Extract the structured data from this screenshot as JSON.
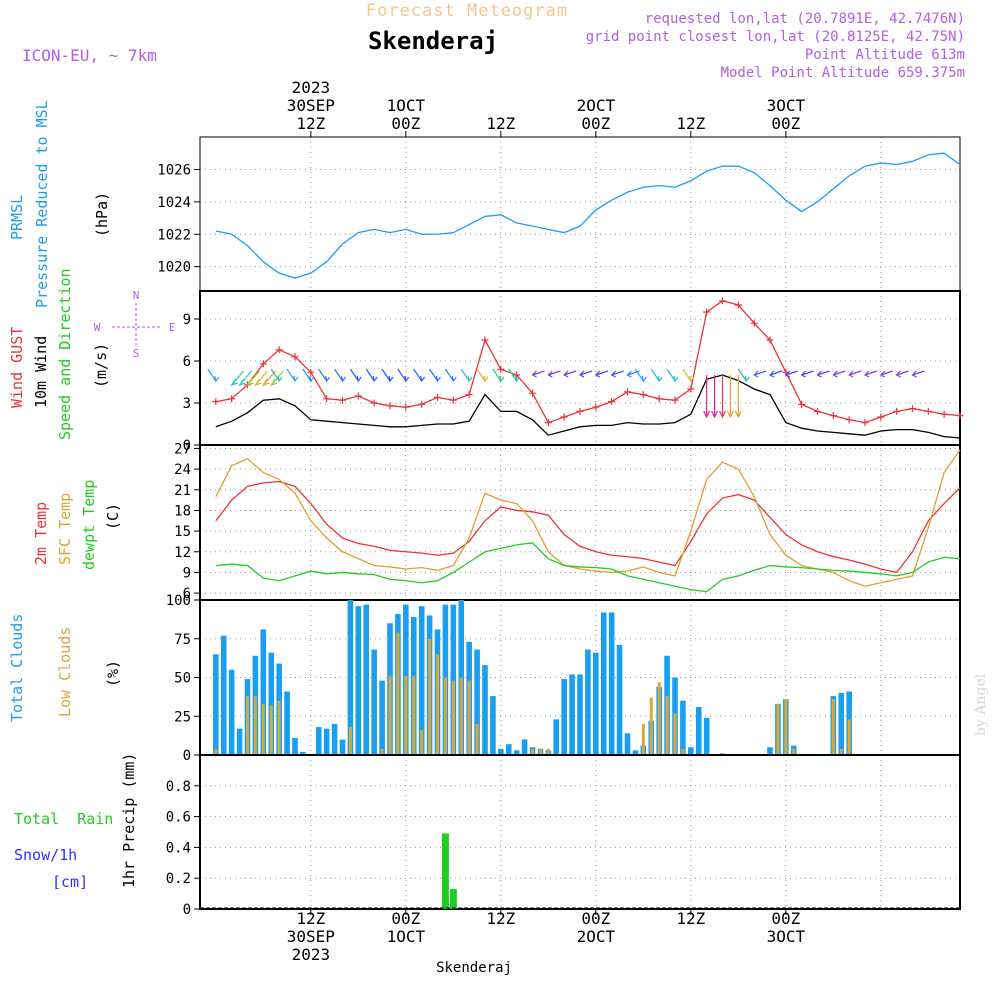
{
  "header": {
    "product": "Forecast Meteogram",
    "location": "Skenderaj",
    "model": "ICON-EU, ~ 7km",
    "requested": "requested lon,lat (20.7891E, 42.7476N)",
    "gridpoint": "grid point closest lon,lat (20.8125E, 42.75N)",
    "point_alt": "Point Altitude 613m",
    "model_alt": "Model Point Altitude 659.375m",
    "footer_location": "Skenderaj",
    "watermark": "by Angel"
  },
  "time_axis": {
    "top_labels": [
      {
        "h": 12,
        "lines": [
          "2023",
          "30SEP",
          "12Z"
        ]
      },
      {
        "h": 24,
        "lines": [
          "1OCT",
          "00Z"
        ]
      },
      {
        "h": 36,
        "lines": [
          "12Z"
        ]
      },
      {
        "h": 48,
        "lines": [
          "2OCT",
          "00Z"
        ]
      },
      {
        "h": 60,
        "lines": [
          "12Z"
        ]
      },
      {
        "h": 72,
        "lines": [
          "3OCT",
          "00Z"
        ]
      }
    ],
    "bottom_labels": [
      {
        "h": 12,
        "lines": [
          "12Z",
          "30SEP",
          "2023"
        ]
      },
      {
        "h": 24,
        "lines": [
          "00Z",
          "1OCT"
        ]
      },
      {
        "h": 36,
        "lines": [
          "12Z"
        ]
      },
      {
        "h": 48,
        "lines": [
          "00Z",
          "2OCT"
        ]
      },
      {
        "h": 60,
        "lines": [
          "12Z"
        ]
      },
      {
        "h": 72,
        "lines": [
          "00Z",
          "3OCT"
        ]
      }
    ]
  },
  "panel_labels": {
    "pressure": [
      "PRMSL",
      "Pressure Reduced to MSL"
    ],
    "pressure_unit": "(hPa)",
    "wind": [
      "Wind GUST",
      "10m Wind",
      "Speed and Direction"
    ],
    "wind_unit": "(m/s)",
    "compass": {
      "n": "N",
      "s": "S",
      "w": "W",
      "e": "E"
    },
    "temp": [
      "2m Temp",
      "SFC Temp",
      "dewpt Temp"
    ],
    "temp_unit": "(C)",
    "clouds": [
      "Total Clouds",
      "Low Clouds"
    ],
    "clouds_unit": "(%)",
    "precip": [
      "Total  Rain",
      "Snow/1h",
      "[cm]"
    ],
    "precip_unit": "1hr Precip (mm)"
  },
  "colors": {
    "pressure": "#1a9ff0",
    "gust": "#e8343c",
    "wind": "#000000",
    "temp2m": "#e8343c",
    "sfc": "#e0a030",
    "dewpt": "#22cc22",
    "total_clouds": "#1a9ff0",
    "low_clouds": "#d8a83c",
    "rain": "#22cc22",
    "snow": "#3030ff",
    "title": "#000000",
    "product": "#f0c890",
    "meta": "#b060e0"
  },
  "chart_data": [
    {
      "type": "line",
      "panel": "pressure",
      "title": "PRMSL Pressure Reduced to MSL",
      "ylabel": "(hPa)",
      "ylim": [
        1018.5,
        1028
      ],
      "yticks": [
        1020,
        1022,
        1024,
        1026
      ],
      "x_hours": [
        0,
        2,
        4,
        6,
        8,
        10,
        12,
        14,
        16,
        18,
        20,
        22,
        24,
        26,
        28,
        30,
        32,
        34,
        36,
        38,
        40,
        42,
        44,
        46,
        48,
        50,
        52,
        54,
        56,
        58,
        60,
        62,
        64,
        66,
        68,
        70,
        72,
        74,
        76,
        78,
        80,
        82,
        84,
        86,
        88,
        90,
        92,
        94
      ],
      "series": [
        {
          "values": [
            1022.2,
            1022.0,
            1021.3,
            1020.3,
            1019.6,
            1019.3,
            1019.6,
            1020.3,
            1021.4,
            1022.1,
            1022.3,
            1022.1,
            1022.3,
            1022.0,
            1022.0,
            1022.1,
            1022.6,
            1023.1,
            1023.2,
            1022.7,
            1022.5,
            1022.3,
            1022.1,
            1022.5,
            1023.5,
            1024.1,
            1024.6,
            1024.9,
            1025.0,
            1024.9,
            1025.3,
            1025.9,
            1026.2,
            1026.2,
            1025.8,
            1025.0,
            1024.1,
            1023.4,
            1024.0,
            1024.8,
            1025.6,
            1026.2,
            1026.4,
            1026.3,
            1026.5,
            1026.9,
            1027.0,
            1026.3
          ]
        }
      ]
    },
    {
      "type": "line",
      "panel": "wind",
      "title": "Wind GUST / 10m Wind Speed and Direction",
      "ylabel": "(m/s)",
      "ylim": [
        0,
        11
      ],
      "yticks": [
        0,
        3,
        6,
        9
      ],
      "x_hours": [
        0,
        2,
        4,
        6,
        8,
        10,
        12,
        14,
        16,
        18,
        20,
        22,
        24,
        26,
        28,
        30,
        32,
        34,
        36,
        38,
        40,
        42,
        44,
        46,
        48,
        50,
        52,
        54,
        56,
        58,
        60,
        62,
        64,
        66,
        68,
        70,
        72,
        74,
        76,
        78,
        80,
        82,
        84,
        86,
        88,
        90,
        92,
        94
      ],
      "series": [
        {
          "name": "Wind GUST",
          "values": [
            3.1,
            3.3,
            4.3,
            5.8,
            6.8,
            6.3,
            5.2,
            3.3,
            3.2,
            3.5,
            3.0,
            2.8,
            2.7,
            2.9,
            3.4,
            3.2,
            3.6,
            7.5,
            5.4,
            5.0,
            3.7,
            1.6,
            2.0,
            2.4,
            2.7,
            3.1,
            3.8,
            3.6,
            3.3,
            3.2,
            4.0,
            9.5,
            10.3,
            10.0,
            8.7,
            7.5,
            5.2,
            2.9,
            2.4,
            2.1,
            1.8,
            1.6,
            2.0,
            2.4,
            2.6,
            2.4,
            2.2,
            2.1
          ]
        },
        {
          "name": "10m Wind",
          "values": [
            1.3,
            1.7,
            2.3,
            3.2,
            3.3,
            2.8,
            1.8,
            1.7,
            1.6,
            1.5,
            1.4,
            1.3,
            1.3,
            1.4,
            1.5,
            1.5,
            1.7,
            3.6,
            2.4,
            2.4,
            1.8,
            0.7,
            1.0,
            1.3,
            1.4,
            1.4,
            1.6,
            1.5,
            1.5,
            1.6,
            2.2,
            4.7,
            5.0,
            4.6,
            4.0,
            3.6,
            1.6,
            1.2,
            1.0,
            0.9,
            0.8,
            0.7,
            1.0,
            1.1,
            1.1,
            0.9,
            0.6,
            0.5
          ]
        }
      ],
      "wind_barbs": [
        {
          "h": 0,
          "color": "#30a0ff"
        },
        {
          "h": 2,
          "color": "#30c0c0"
        },
        {
          "h": 3,
          "color": "#30d0a0"
        },
        {
          "h": 4,
          "color": "#a0d030"
        },
        {
          "h": 5,
          "color": "#d0c030"
        },
        {
          "h": 6,
          "color": "#e8a030"
        },
        {
          "h": 7,
          "color": "#90d040"
        },
        {
          "h": 8,
          "color": "#30c0a0"
        },
        {
          "h": 10,
          "color": "#30a0ff"
        },
        {
          "h": 12,
          "color": "#2090ff"
        },
        {
          "h": 14,
          "color": "#2080ff"
        },
        {
          "h": 16,
          "color": "#3070ff"
        },
        {
          "h": 18,
          "color": "#3060ff"
        },
        {
          "h": 20,
          "color": "#3060ff"
        },
        {
          "h": 22,
          "color": "#3050ff"
        },
        {
          "h": 24,
          "color": "#4050ff"
        },
        {
          "h": 26,
          "color": "#3060ff"
        },
        {
          "h": 28,
          "color": "#3070ff"
        },
        {
          "h": 30,
          "color": "#3080ff"
        },
        {
          "h": 32,
          "color": "#30c0c0"
        },
        {
          "h": 34,
          "color": "#e8b030"
        },
        {
          "h": 36,
          "color": "#30c080"
        },
        {
          "h": 38,
          "color": "#30c0a0"
        },
        {
          "h": 40,
          "color": "#8040e0"
        },
        {
          "h": 42,
          "color": "#8040e0"
        },
        {
          "h": 44,
          "color": "#7040e0"
        },
        {
          "h": 46,
          "color": "#6040f0"
        },
        {
          "h": 48,
          "color": "#5040ff"
        },
        {
          "h": 50,
          "color": "#4050ff"
        },
        {
          "h": 52,
          "color": "#3080ff"
        },
        {
          "h": 54,
          "color": "#30a0ff"
        },
        {
          "h": 56,
          "color": "#30c0d0"
        },
        {
          "h": 58,
          "color": "#30c0d0"
        },
        {
          "h": 60,
          "color": "#e8b030"
        },
        {
          "h": 62,
          "color": "#e020a0"
        },
        {
          "h": 63,
          "color": "#e020a0"
        },
        {
          "h": 64,
          "color": "#e83060"
        },
        {
          "h": 65,
          "color": "#e8a030"
        },
        {
          "h": 66,
          "color": "#e8a030"
        },
        {
          "h": 67,
          "color": "#30c0a0"
        },
        {
          "h": 68,
          "color": "#4060ff"
        },
        {
          "h": 70,
          "color": "#4050ff"
        },
        {
          "h": 72,
          "color": "#5040ff"
        },
        {
          "h": 74,
          "color": "#6040f0"
        },
        {
          "h": 76,
          "color": "#7040e0"
        },
        {
          "h": 78,
          "color": "#8040e0"
        },
        {
          "h": 80,
          "color": "#9040e0"
        },
        {
          "h": 82,
          "color": "#9040e0"
        },
        {
          "h": 84,
          "color": "#8040e0"
        },
        {
          "h": 86,
          "color": "#8040e0"
        },
        {
          "h": 88,
          "color": "#7040e0"
        }
      ]
    },
    {
      "type": "line",
      "panel": "temperature",
      "title": "2m Temp / SFC Temp / dewpt Temp",
      "ylabel": "(C)",
      "ylim": [
        5,
        27.5
      ],
      "yticks": [
        6,
        9,
        12,
        15,
        18,
        21,
        24,
        27
      ],
      "x_hours": [
        0,
        2,
        4,
        6,
        8,
        10,
        12,
        14,
        16,
        18,
        20,
        22,
        24,
        26,
        28,
        30,
        32,
        34,
        36,
        38,
        40,
        42,
        44,
        46,
        48,
        50,
        52,
        54,
        56,
        58,
        60,
        62,
        64,
        66,
        68,
        70,
        72,
        74,
        76,
        78,
        80,
        82,
        84,
        86,
        88,
        90,
        92,
        94
      ],
      "series": [
        {
          "name": "2m Temp",
          "values": [
            16.5,
            19.5,
            21.5,
            22.0,
            22.2,
            21.5,
            19.0,
            16.0,
            14.0,
            13.2,
            12.8,
            12.2,
            12.0,
            11.8,
            11.5,
            11.8,
            13.5,
            16.5,
            18.5,
            18.0,
            17.8,
            17.3,
            14.5,
            12.8,
            12.0,
            11.5,
            11.3,
            11.0,
            10.5,
            10.0,
            13.5,
            17.5,
            19.8,
            20.3,
            19.5,
            17.0,
            14.5,
            13.0,
            12.0,
            11.3,
            10.8,
            10.2,
            9.5,
            9.0,
            12.0,
            16.5,
            19.0,
            21.3
          ]
        },
        {
          "name": "SFC Temp",
          "values": [
            20.0,
            24.5,
            25.5,
            23.5,
            22.5,
            20.5,
            16.5,
            14.0,
            12.0,
            11.0,
            10.0,
            9.8,
            9.5,
            9.7,
            9.3,
            10.0,
            14.0,
            20.5,
            19.5,
            19.0,
            16.5,
            12.0,
            10.0,
            9.5,
            9.2,
            9.0,
            9.2,
            9.8,
            9.0,
            8.5,
            15.0,
            22.5,
            25.0,
            24.0,
            20.0,
            14.5,
            11.5,
            10.0,
            9.5,
            9.0,
            7.8,
            7.0,
            7.5,
            8.0,
            8.5,
            15.5,
            23.5,
            26.8
          ]
        },
        {
          "name": "dewpt Temp",
          "values": [
            10.0,
            10.2,
            10.0,
            8.2,
            7.8,
            8.5,
            9.2,
            8.8,
            9.0,
            8.8,
            8.7,
            8.0,
            7.8,
            7.5,
            7.8,
            9.0,
            10.5,
            12.0,
            12.5,
            13.0,
            13.3,
            11.0,
            10.0,
            9.8,
            9.7,
            9.5,
            8.5,
            8.0,
            7.5,
            7.0,
            6.5,
            6.2,
            8.0,
            8.5,
            9.3,
            10.0,
            9.8,
            9.7,
            9.5,
            9.3,
            9.2,
            9.0,
            8.8,
            8.5,
            9.0,
            10.5,
            11.2,
            11.0
          ]
        }
      ]
    },
    {
      "type": "bar",
      "panel": "clouds",
      "title": "Total Clouds / Low Clouds",
      "ylabel": "(%)",
      "ylim": [
        0,
        100
      ],
      "yticks": [
        0,
        25,
        50,
        75,
        100
      ],
      "x_hours": [
        0,
        1,
        2,
        3,
        4,
        5,
        6,
        7,
        8,
        9,
        10,
        11,
        12,
        13,
        14,
        15,
        16,
        17,
        18,
        19,
        20,
        21,
        22,
        23,
        24,
        25,
        26,
        27,
        28,
        29,
        30,
        31,
        32,
        33,
        34,
        35,
        36,
        37,
        38,
        39,
        40,
        41,
        42,
        43,
        44,
        45,
        46,
        47,
        48,
        49,
        50,
        51,
        52,
        53,
        54,
        55,
        56,
        57,
        58,
        59,
        60,
        61,
        62,
        63,
        64,
        65,
        66,
        67,
        68,
        69,
        70,
        71,
        72,
        73,
        74,
        75,
        76,
        77,
        78,
        79,
        80,
        81,
        82,
        83,
        84,
        85,
        86,
        87,
        88,
        89,
        90,
        91,
        92,
        93,
        94,
        95
      ],
      "series": [
        {
          "name": "Total Clouds",
          "values": [
            65,
            77,
            55,
            17,
            49,
            64,
            81,
            66,
            59,
            41,
            11,
            2,
            0,
            18,
            17,
            20,
            10,
            100,
            96,
            97,
            68,
            48,
            85,
            91,
            97,
            89,
            96,
            90,
            81,
            97,
            97,
            100,
            73,
            68,
            58,
            38,
            4,
            7,
            3,
            10,
            5,
            4,
            3,
            23,
            49,
            52,
            52,
            68,
            66,
            92,
            92,
            71,
            14,
            3,
            6,
            22,
            44,
            64,
            50,
            35,
            5,
            31,
            24,
            0,
            1,
            0,
            0,
            0,
            0,
            0,
            5,
            33,
            36,
            6,
            0,
            0,
            0,
            0,
            38,
            40,
            41,
            0,
            0,
            0,
            0,
            0,
            0,
            0,
            0,
            0,
            0,
            0,
            0,
            0,
            0,
            0
          ]
        },
        {
          "name": "Low Clouds",
          "values": [
            4,
            0,
            0,
            0,
            38,
            38,
            33,
            32,
            35,
            0,
            0,
            0,
            0,
            0,
            0,
            0,
            0,
            18,
            0,
            0,
            0,
            4,
            51,
            79,
            51,
            51,
            16,
            75,
            65,
            50,
            48,
            50,
            48,
            20,
            0,
            0,
            0,
            0,
            0,
            0,
            4,
            4,
            4,
            0,
            0,
            0,
            0,
            0,
            0,
            0,
            0,
            0,
            0,
            0,
            20,
            37,
            47,
            38,
            27,
            4,
            0,
            0,
            0,
            0,
            0,
            0,
            0,
            0,
            0,
            0,
            0,
            33,
            36,
            4,
            0,
            0,
            0,
            0,
            36,
            4,
            23,
            0,
            0,
            0,
            0,
            0,
            0,
            0,
            0,
            0,
            0,
            0,
            0,
            0,
            0,
            0
          ]
        }
      ]
    },
    {
      "type": "bar",
      "panel": "precip",
      "title": "1hr Precip (mm)",
      "ylabel": "1hr Precip (mm)",
      "ylim": [
        0,
        1.0
      ],
      "yticks": [
        0,
        0.2,
        0.4,
        0.6,
        0.8
      ],
      "x_hours": [
        29,
        30
      ],
      "series": [
        {
          "name": "Total Rain",
          "values": [
            0.49,
            0.13
          ]
        }
      ]
    }
  ]
}
